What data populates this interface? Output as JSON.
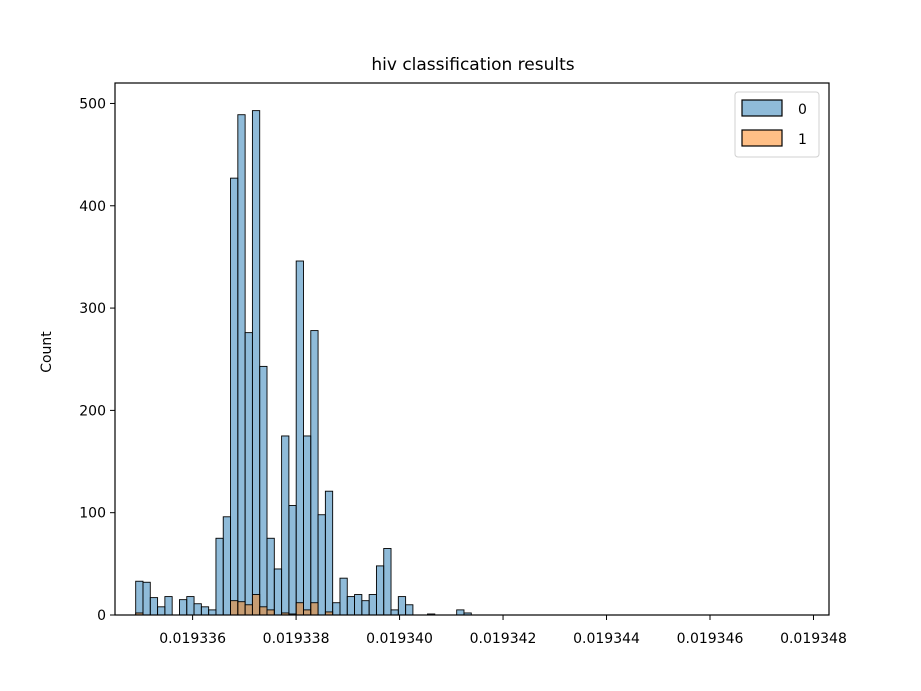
{
  "chart_data": {
    "type": "bar",
    "title": "hiv classification results",
    "xlabel": "",
    "ylabel": "Count",
    "xlim": [
      0.0193345,
      0.0193483
    ],
    "ylim": [
      0,
      520
    ],
    "xticks": [
      0.019336,
      0.019338,
      0.01934,
      0.019342,
      0.019344,
      0.019346,
      0.019348
    ],
    "xtick_labels": [
      "0.019336",
      "0.019338",
      "0.019340",
      "0.019342",
      "0.019344",
      "0.019346",
      "0.019348"
    ],
    "yticks": [
      0,
      100,
      200,
      300,
      400,
      500
    ],
    "ytick_labels": [
      "0",
      "100",
      "200",
      "300",
      "400",
      "500"
    ],
    "bin_start": 0.0193349,
    "bin_width": 1.41e-07,
    "legend_position": "top-right",
    "series": [
      {
        "name": "0",
        "color": "#1f77b4",
        "values": [
          33,
          32,
          17,
          8,
          18,
          0,
          15,
          18,
          11,
          8,
          5,
          75,
          96,
          427,
          489,
          276,
          493,
          243,
          75,
          45,
          175,
          107,
          346,
          175,
          278,
          98,
          121,
          12,
          36,
          18,
          20,
          14,
          20,
          48,
          65,
          5,
          18,
          10,
          0,
          0,
          1,
          0,
          0,
          0,
          5,
          2,
          0
        ]
      },
      {
        "name": "1",
        "color": "#ff7f0e",
        "values": [
          2,
          0,
          0,
          0,
          0,
          0,
          0,
          0,
          0,
          0,
          0,
          0,
          0,
          14,
          13,
          10,
          20,
          8,
          5,
          0,
          2,
          1,
          12,
          5,
          12,
          0,
          3,
          0,
          0,
          0,
          0,
          0,
          0,
          0,
          0,
          0,
          0,
          0,
          0,
          0,
          0,
          0,
          0,
          0,
          0,
          0,
          0
        ]
      }
    ]
  }
}
